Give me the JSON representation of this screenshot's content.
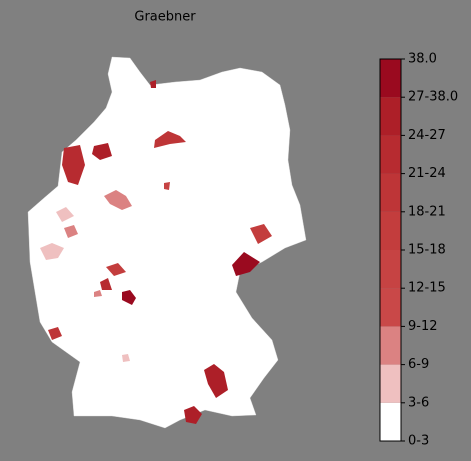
{
  "chart_data": {
    "type": "choropleth",
    "title": "Graebner",
    "colorbar": {
      "labels": [
        "0-3",
        "3-6",
        "6-9",
        "9-12",
        "12-15",
        "15-18",
        "18-21",
        "21-24",
        "24-27",
        "27-38.0",
        "38.0"
      ],
      "colors": [
        "#ffffff",
        "#efc0c0",
        "#db8282",
        "#c94848",
        "#c64343",
        "#c33d3d",
        "#be3537",
        "#b72b30",
        "#ad1f28",
        "#9a0a1f"
      ]
    }
  }
}
